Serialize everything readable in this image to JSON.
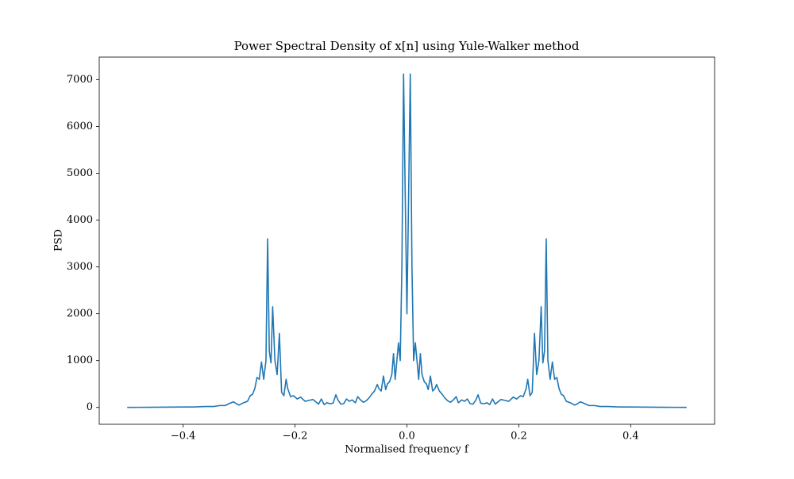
{
  "chart_data": {
    "type": "line",
    "title": "Power Spectral Density of x[n] using Yule-Walker method",
    "x_label": "Normalised frequency f",
    "y_label": "PSD",
    "color": "#1f77b4",
    "xlim": [
      -0.55,
      0.55
    ],
    "ylim": [
      -360,
      7480
    ],
    "xticks": [
      {
        "value": -0.4,
        "label": "−0.4"
      },
      {
        "value": -0.2,
        "label": "−0.2"
      },
      {
        "value": 0,
        "label": "0.0"
      },
      0.2,
      0.4
    ],
    "yticks": [
      0,
      1000,
      2000,
      3000,
      4000,
      5000,
      6000,
      7000
    ],
    "x": [
      -0.5,
      -0.48,
      -0.46,
      -0.44,
      -0.42,
      -0.4,
      -0.38,
      -0.36,
      -0.345,
      -0.335,
      -0.325,
      -0.318,
      -0.31,
      -0.305,
      -0.3,
      -0.292,
      -0.285,
      -0.28,
      -0.276,
      -0.272,
      -0.268,
      -0.264,
      -0.26,
      -0.256,
      -0.252,
      -0.249,
      -0.246,
      -0.243,
      -0.24,
      -0.236,
      -0.232,
      -0.228,
      -0.224,
      -0.22,
      -0.216,
      -0.213,
      -0.208,
      -0.203,
      -0.196,
      -0.19,
      -0.182,
      -0.175,
      -0.168,
      -0.163,
      -0.158,
      -0.153,
      -0.148,
      -0.143,
      -0.138,
      -0.132,
      -0.127,
      -0.123,
      -0.118,
      -0.113,
      -0.108,
      -0.103,
      -0.098,
      -0.092,
      -0.088,
      -0.083,
      -0.078,
      -0.073,
      -0.068,
      -0.063,
      -0.058,
      -0.053,
      -0.05,
      -0.046,
      -0.042,
      -0.038,
      -0.035,
      -0.031,
      -0.027,
      -0.024,
      -0.021,
      -0.018,
      -0.015,
      -0.012,
      -0.009,
      -0.006,
      -0.003,
      0,
      0.003,
      0.006,
      0.009,
      0.012,
      0.015,
      0.018,
      0.021,
      0.024,
      0.027,
      0.031,
      0.035,
      0.038,
      0.042,
      0.046,
      0.05,
      0.053,
      0.058,
      0.063,
      0.068,
      0.073,
      0.078,
      0.083,
      0.088,
      0.092,
      0.098,
      0.103,
      0.108,
      0.113,
      0.118,
      0.123,
      0.127,
      0.132,
      0.138,
      0.143,
      0.148,
      0.153,
      0.158,
      0.163,
      0.168,
      0.175,
      0.182,
      0.19,
      0.196,
      0.203,
      0.208,
      0.213,
      0.216,
      0.22,
      0.224,
      0.228,
      0.232,
      0.236,
      0.24,
      0.243,
      0.246,
      0.249,
      0.252,
      0.256,
      0.26,
      0.264,
      0.268,
      0.272,
      0.276,
      0.28,
      0.285,
      0.292,
      0.3,
      0.305,
      0.31,
      0.318,
      0.325,
      0.335,
      0.345,
      0.36,
      0.38,
      0.4,
      0.42,
      0.44,
      0.46,
      0.48,
      0.5
    ],
    "values": [
      1,
      2,
      3,
      5,
      8,
      10,
      10,
      20,
      20,
      40,
      40,
      80,
      120,
      80,
      50,
      100,
      130,
      250,
      280,
      400,
      640,
      600,
      970,
      600,
      1000,
      3600,
      1200,
      950,
      2150,
      1000,
      700,
      1580,
      320,
      250,
      600,
      400,
      230,
      250,
      180,
      220,
      130,
      150,
      170,
      120,
      70,
      180,
      60,
      100,
      80,
      90,
      270,
      150,
      70,
      80,
      180,
      130,
      160,
      100,
      230,
      160,
      110,
      140,
      200,
      280,
      350,
      490,
      400,
      350,
      670,
      380,
      500,
      550,
      700,
      1150,
      600,
      1000,
      1380,
      1000,
      3000,
      7120,
      4500,
      2000,
      4500,
      7120,
      3000,
      1000,
      1380,
      1000,
      600,
      1150,
      700,
      550,
      500,
      380,
      670,
      350,
      400,
      490,
      350,
      280,
      200,
      140,
      110,
      160,
      230,
      100,
      160,
      130,
      180,
      80,
      70,
      150,
      270,
      90,
      80,
      100,
      60,
      180,
      70,
      120,
      170,
      150,
      130,
      220,
      180,
      250,
      230,
      400,
      600,
      250,
      320,
      1580,
      700,
      1000,
      2150,
      950,
      1200,
      3600,
      1000,
      600,
      970,
      600,
      640,
      400,
      280,
      250,
      130,
      100,
      50,
      80,
      120,
      80,
      40,
      40,
      20,
      20,
      10,
      10,
      8,
      5,
      3,
      2,
      1
    ]
  }
}
